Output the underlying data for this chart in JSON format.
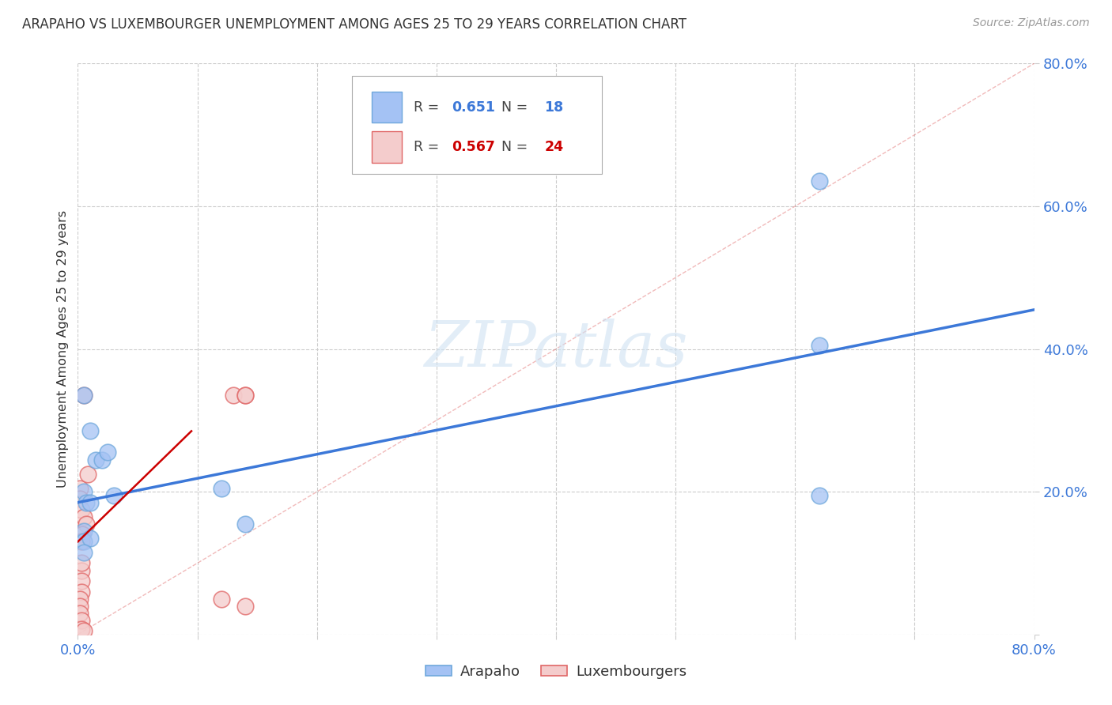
{
  "title": "ARAPAHO VS LUXEMBOURGER UNEMPLOYMENT AMONG AGES 25 TO 29 YEARS CORRELATION CHART",
  "source": "Source: ZipAtlas.com",
  "ylabel": "Unemployment Among Ages 25 to 29 years",
  "xlim": [
    0.0,
    0.8
  ],
  "ylim": [
    0.0,
    0.8
  ],
  "xticks": [
    0.0,
    0.1,
    0.2,
    0.3,
    0.4,
    0.5,
    0.6,
    0.7,
    0.8
  ],
  "xtick_labels": [
    "0.0%",
    "",
    "",
    "",
    "",
    "",
    "",
    "",
    "80.0%"
  ],
  "yticks": [
    0.0,
    0.2,
    0.4,
    0.6,
    0.8
  ],
  "ytick_labels": [
    "",
    "20.0%",
    "40.0%",
    "60.0%",
    "80.0%"
  ],
  "arapaho_color": "#a4c2f4",
  "luxembourger_color": "#f4cccc",
  "arapaho_edge_color": "#6fa8dc",
  "luxembourger_edge_color": "#e06666",
  "arapaho_R": 0.651,
  "arapaho_N": 18,
  "luxembourger_R": 0.567,
  "luxembourger_N": 24,
  "watermark_text": "ZIPatlas",
  "blue_line": [
    0.0,
    0.185,
    0.8,
    0.455
  ],
  "red_line": [
    0.0,
    0.13,
    0.095,
    0.285
  ],
  "diag_line_color": "#e06666",
  "blue_line_color": "#3c78d8",
  "red_line_color": "#cc0000",
  "background_color": "#ffffff",
  "grid_color": "#cccccc",
  "tick_color": "#3c78d8",
  "arapaho_x": [
    0.005,
    0.01,
    0.015,
    0.02,
    0.025,
    0.03,
    0.005,
    0.007,
    0.01,
    0.005,
    0.005,
    0.01,
    0.12,
    0.14,
    0.62,
    0.62,
    0.62,
    0.005
  ],
  "arapaho_y": [
    0.335,
    0.285,
    0.245,
    0.245,
    0.255,
    0.195,
    0.2,
    0.185,
    0.185,
    0.145,
    0.13,
    0.135,
    0.205,
    0.155,
    0.635,
    0.405,
    0.195,
    0.115
  ],
  "luxembourger_x": [
    0.002,
    0.002,
    0.003,
    0.005,
    0.007,
    0.008,
    0.004,
    0.003,
    0.003,
    0.003,
    0.003,
    0.002,
    0.002,
    0.002,
    0.003,
    0.003,
    0.003,
    0.12,
    0.005,
    0.13,
    0.14,
    0.14,
    0.14,
    0.005
  ],
  "luxembourger_y": [
    0.205,
    0.19,
    0.175,
    0.165,
    0.155,
    0.225,
    0.14,
    0.13,
    0.09,
    0.075,
    0.06,
    0.05,
    0.04,
    0.03,
    0.02,
    0.008,
    0.1,
    0.05,
    0.335,
    0.335,
    0.335,
    0.335,
    0.04,
    0.005
  ]
}
